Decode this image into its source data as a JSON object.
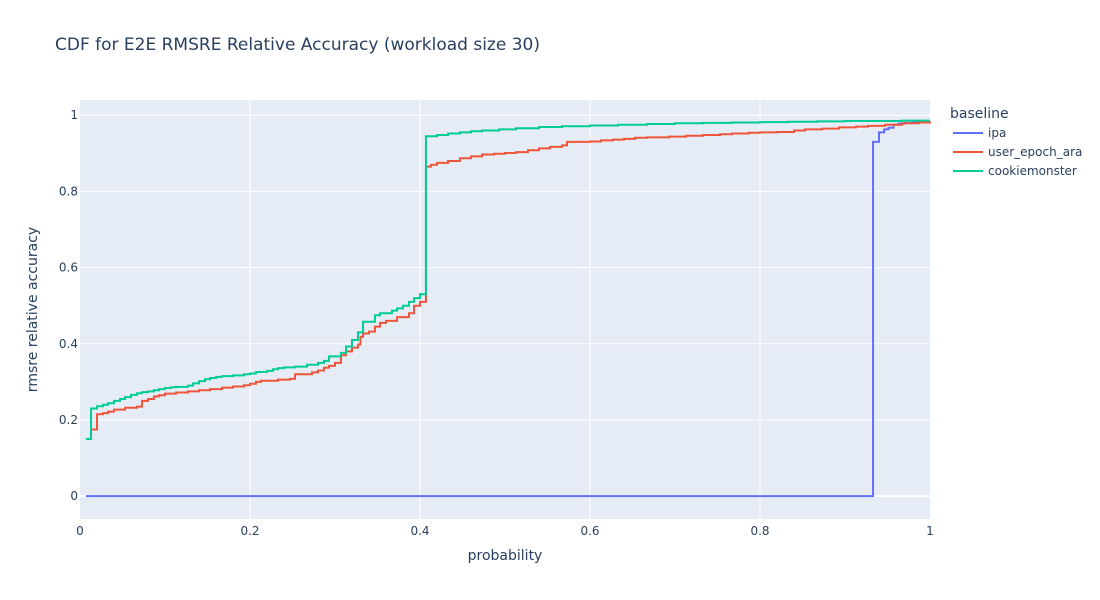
{
  "chart_data": {
    "type": "line",
    "line_shape": "step",
    "title": "CDF for E2E RMSRE Relative Accuracy (workload size 30)",
    "xlabel": "probability",
    "ylabel": "rmsre relative accuracy",
    "xlim": [
      0,
      1
    ],
    "ylim": [
      -0.06,
      1.04
    ],
    "x_ticks": [
      0,
      0.2,
      0.4,
      0.6,
      0.8,
      1
    ],
    "x_tick_labels": [
      "0",
      "0.2",
      "0.4",
      "0.6",
      "0.8",
      "1"
    ],
    "y_ticks": [
      0,
      0.2,
      0.4,
      0.6,
      0.8,
      1
    ],
    "y_tick_labels": [
      "0",
      "0.2",
      "0.4",
      "0.6",
      "0.8",
      "1"
    ],
    "grid": true,
    "plot_background": "#e5ecf6",
    "legend": {
      "title": "baseline",
      "position": "right"
    },
    "series": [
      {
        "name": "ipa",
        "color": "#636efa",
        "points": [
          [
            0.007,
            0.0
          ],
          [
            0.933,
            0.0
          ],
          [
            0.933,
            0.93
          ],
          [
            0.94,
            0.955
          ],
          [
            0.946,
            0.963
          ],
          [
            0.951,
            0.967
          ],
          [
            0.957,
            0.975
          ],
          [
            0.963,
            0.978
          ],
          [
            0.97,
            0.98
          ],
          [
            0.98,
            0.981
          ],
          [
            0.99,
            0.982
          ],
          [
            1.0,
            0.983
          ]
        ]
      },
      {
        "name": "user_epoch_ara",
        "color": "#ef553b",
        "points": [
          [
            0.007,
            0.15
          ],
          [
            0.013,
            0.175
          ],
          [
            0.02,
            0.215
          ],
          [
            0.027,
            0.218
          ],
          [
            0.033,
            0.222
          ],
          [
            0.04,
            0.227
          ],
          [
            0.053,
            0.232
          ],
          [
            0.067,
            0.235
          ],
          [
            0.073,
            0.25
          ],
          [
            0.08,
            0.255
          ],
          [
            0.087,
            0.262
          ],
          [
            0.093,
            0.265
          ],
          [
            0.1,
            0.269
          ],
          [
            0.113,
            0.272
          ],
          [
            0.127,
            0.275
          ],
          [
            0.14,
            0.278
          ],
          [
            0.153,
            0.281
          ],
          [
            0.167,
            0.285
          ],
          [
            0.18,
            0.288
          ],
          [
            0.193,
            0.291
          ],
          [
            0.2,
            0.295
          ],
          [
            0.207,
            0.3
          ],
          [
            0.213,
            0.303
          ],
          [
            0.233,
            0.306
          ],
          [
            0.247,
            0.308
          ],
          [
            0.253,
            0.32
          ],
          [
            0.273,
            0.325
          ],
          [
            0.28,
            0.33
          ],
          [
            0.287,
            0.337
          ],
          [
            0.293,
            0.342
          ],
          [
            0.3,
            0.35
          ],
          [
            0.307,
            0.37
          ],
          [
            0.313,
            0.38
          ],
          [
            0.32,
            0.39
          ],
          [
            0.327,
            0.398
          ],
          [
            0.33,
            0.418
          ],
          [
            0.333,
            0.427
          ],
          [
            0.34,
            0.432
          ],
          [
            0.347,
            0.445
          ],
          [
            0.353,
            0.455
          ],
          [
            0.36,
            0.46
          ],
          [
            0.373,
            0.47
          ],
          [
            0.387,
            0.48
          ],
          [
            0.393,
            0.5
          ],
          [
            0.4,
            0.51
          ],
          [
            0.407,
            0.52
          ],
          [
            0.407,
            0.865
          ],
          [
            0.413,
            0.87
          ],
          [
            0.42,
            0.875
          ],
          [
            0.433,
            0.88
          ],
          [
            0.447,
            0.887
          ],
          [
            0.46,
            0.892
          ],
          [
            0.473,
            0.897
          ],
          [
            0.487,
            0.899
          ],
          [
            0.5,
            0.901
          ],
          [
            0.513,
            0.903
          ],
          [
            0.527,
            0.908
          ],
          [
            0.54,
            0.913
          ],
          [
            0.553,
            0.917
          ],
          [
            0.567,
            0.921
          ],
          [
            0.573,
            0.93
          ],
          [
            0.6,
            0.931
          ],
          [
            0.613,
            0.934
          ],
          [
            0.627,
            0.936
          ],
          [
            0.64,
            0.938
          ],
          [
            0.653,
            0.941
          ],
          [
            0.667,
            0.942
          ],
          [
            0.693,
            0.944
          ],
          [
            0.713,
            0.946
          ],
          [
            0.733,
            0.948
          ],
          [
            0.753,
            0.95
          ],
          [
            0.767,
            0.952
          ],
          [
            0.787,
            0.954
          ],
          [
            0.8,
            0.955
          ],
          [
            0.82,
            0.956
          ],
          [
            0.84,
            0.96
          ],
          [
            0.853,
            0.963
          ],
          [
            0.873,
            0.965
          ],
          [
            0.893,
            0.968
          ],
          [
            0.913,
            0.97
          ],
          [
            0.927,
            0.972
          ],
          [
            0.947,
            0.975
          ],
          [
            0.967,
            0.979
          ],
          [
            0.987,
            0.981
          ],
          [
            1.0,
            0.983
          ]
        ]
      },
      {
        "name": "cookiemonster",
        "color": "#00cc96",
        "points": [
          [
            0.007,
            0.15
          ],
          [
            0.013,
            0.23
          ],
          [
            0.02,
            0.236
          ],
          [
            0.027,
            0.24
          ],
          [
            0.033,
            0.244
          ],
          [
            0.04,
            0.25
          ],
          [
            0.047,
            0.255
          ],
          [
            0.053,
            0.26
          ],
          [
            0.06,
            0.266
          ],
          [
            0.067,
            0.27
          ],
          [
            0.073,
            0.273
          ],
          [
            0.08,
            0.275
          ],
          [
            0.087,
            0.278
          ],
          [
            0.093,
            0.281
          ],
          [
            0.1,
            0.284
          ],
          [
            0.107,
            0.286
          ],
          [
            0.113,
            0.287
          ],
          [
            0.127,
            0.29
          ],
          [
            0.133,
            0.296
          ],
          [
            0.14,
            0.302
          ],
          [
            0.147,
            0.307
          ],
          [
            0.153,
            0.31
          ],
          [
            0.16,
            0.313
          ],
          [
            0.167,
            0.315
          ],
          [
            0.18,
            0.317
          ],
          [
            0.193,
            0.32
          ],
          [
            0.2,
            0.322
          ],
          [
            0.207,
            0.326
          ],
          [
            0.22,
            0.329
          ],
          [
            0.227,
            0.333
          ],
          [
            0.233,
            0.336
          ],
          [
            0.24,
            0.338
          ],
          [
            0.253,
            0.34
          ],
          [
            0.267,
            0.345
          ],
          [
            0.28,
            0.35
          ],
          [
            0.287,
            0.355
          ],
          [
            0.293,
            0.367
          ],
          [
            0.307,
            0.376
          ],
          [
            0.313,
            0.393
          ],
          [
            0.32,
            0.41
          ],
          [
            0.327,
            0.43
          ],
          [
            0.333,
            0.458
          ],
          [
            0.347,
            0.475
          ],
          [
            0.353,
            0.48
          ],
          [
            0.367,
            0.487
          ],
          [
            0.373,
            0.493
          ],
          [
            0.38,
            0.5
          ],
          [
            0.387,
            0.51
          ],
          [
            0.393,
            0.52
          ],
          [
            0.4,
            0.53
          ],
          [
            0.407,
            0.545
          ],
          [
            0.407,
            0.945
          ],
          [
            0.42,
            0.948
          ],
          [
            0.433,
            0.952
          ],
          [
            0.447,
            0.955
          ],
          [
            0.46,
            0.958
          ],
          [
            0.473,
            0.96
          ],
          [
            0.493,
            0.963
          ],
          [
            0.513,
            0.966
          ],
          [
            0.54,
            0.969
          ],
          [
            0.567,
            0.971
          ],
          [
            0.6,
            0.973
          ],
          [
            0.633,
            0.975
          ],
          [
            0.667,
            0.977
          ],
          [
            0.7,
            0.979
          ],
          [
            0.733,
            0.98
          ],
          [
            0.767,
            0.981
          ],
          [
            0.8,
            0.982
          ],
          [
            0.833,
            0.983
          ],
          [
            0.867,
            0.984
          ],
          [
            0.9,
            0.985
          ],
          [
            0.933,
            0.985
          ],
          [
            0.967,
            0.986
          ],
          [
            1.0,
            0.986
          ]
        ]
      }
    ]
  }
}
